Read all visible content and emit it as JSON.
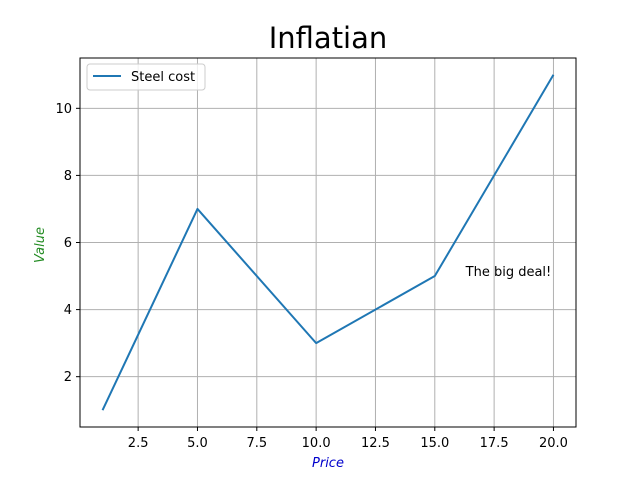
{
  "chart_data": {
    "type": "line",
    "title": "Inflatian",
    "xlabel": "Price",
    "ylabel": "Value",
    "xlim": [
      0.05,
      20.95
    ],
    "ylim": [
      0.5,
      11.5
    ],
    "xticks": [
      2.5,
      5.0,
      7.5,
      10.0,
      12.5,
      15.0,
      17.5,
      20.0
    ],
    "xtick_labels": [
      "2.5",
      "5.0",
      "7.5",
      "10.0",
      "12.5",
      "15.0",
      "17.5",
      "20.0"
    ],
    "yticks": [
      2,
      4,
      6,
      8,
      10
    ],
    "ytick_labels": [
      "2",
      "4",
      "6",
      "8",
      "10"
    ],
    "grid": true,
    "legend_position": "upper-left",
    "series": [
      {
        "name": "Steel cost",
        "color": "#1f77b4",
        "x": [
          1,
          5,
          10,
          15,
          20
        ],
        "y": [
          1,
          7,
          3,
          5,
          11
        ]
      }
    ],
    "annotations": [
      {
        "text": "The big deal!",
        "x": 16.3,
        "y": 5.0
      }
    ]
  }
}
